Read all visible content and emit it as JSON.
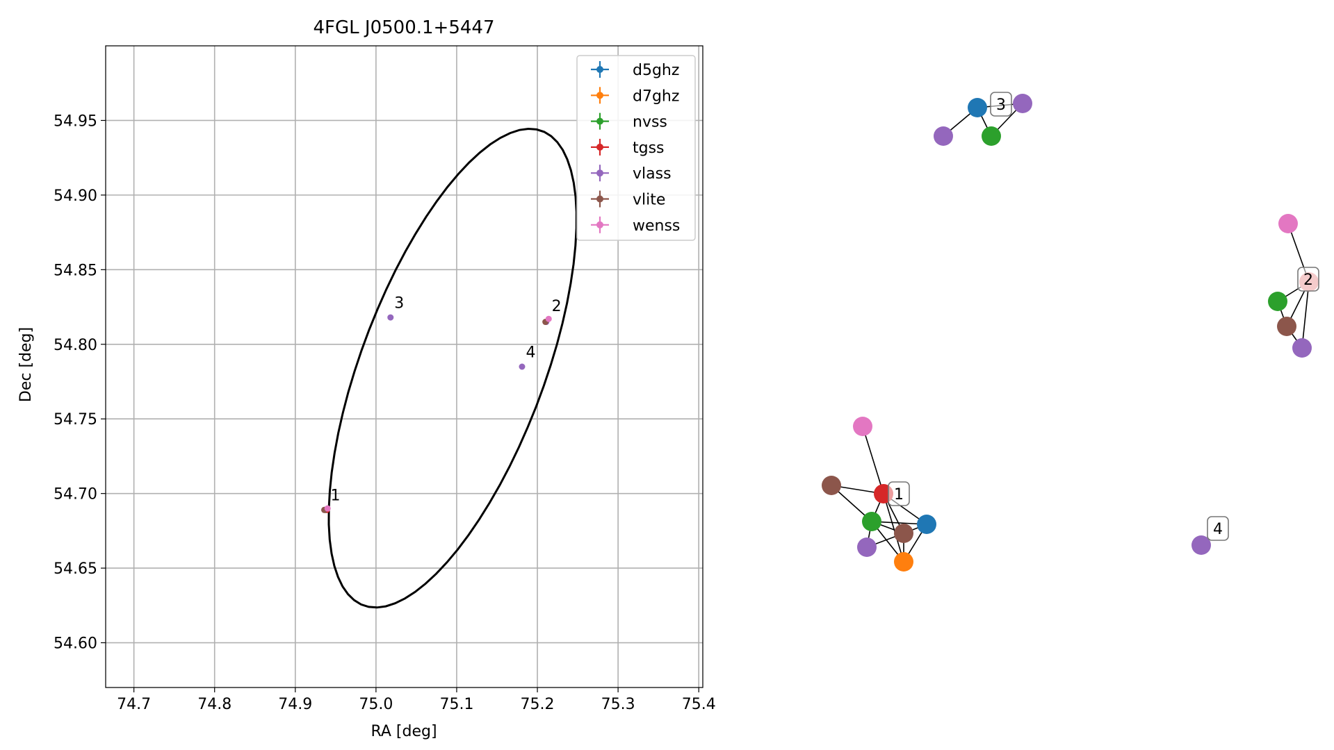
{
  "chart_data": [
    {
      "type": "scatter",
      "title": "4FGL J0500.1+5447",
      "xlabel": "RA [deg]",
      "ylabel": "Dec [deg]",
      "xlim": [
        74.665,
        75.405
      ],
      "ylim": [
        54.57,
        55.0
      ],
      "xticks": [
        74.7,
        74.8,
        74.9,
        75.0,
        75.1,
        75.2,
        75.3,
        75.4
      ],
      "xtick_labels": [
        "74.7",
        "74.8",
        "74.9",
        "75.0",
        "75.1",
        "75.2",
        "75.3",
        "75.4"
      ],
      "yticks": [
        54.6,
        54.65,
        54.7,
        54.75,
        54.8,
        54.85,
        54.9,
        54.95
      ],
      "ytick_labels": [
        "54.60",
        "54.65",
        "54.70",
        "54.75",
        "54.80",
        "54.85",
        "54.90",
        "54.95"
      ],
      "grid": true,
      "legend_position": "top-right",
      "series": [
        {
          "name": "d5ghz",
          "color": "#1f77b4",
          "points": [
            {
              "x": 74.938,
              "y": 54.689
            }
          ]
        },
        {
          "name": "d7ghz",
          "color": "#ff7f0e",
          "points": [
            {
              "x": 74.937,
              "y": 54.689
            }
          ]
        },
        {
          "name": "nvss",
          "color": "#2ca02c",
          "points": [
            {
              "x": 74.938,
              "y": 54.689
            }
          ]
        },
        {
          "name": "tgss",
          "color": "#d62728",
          "points": [
            {
              "x": 74.939,
              "y": 54.689
            }
          ]
        },
        {
          "name": "vlass",
          "color": "#9467bd",
          "points": [
            {
              "x": 74.936,
              "y": 54.689
            },
            {
              "x": 75.018,
              "y": 54.818
            },
            {
              "x": 75.181,
              "y": 54.785
            },
            {
              "x": 75.211,
              "y": 54.815
            }
          ]
        },
        {
          "name": "vlite",
          "color": "#8c564b",
          "points": [
            {
              "x": 74.936,
              "y": 54.689
            },
            {
              "x": 75.21,
              "y": 54.815
            }
          ]
        },
        {
          "name": "wenss",
          "color": "#e377c2",
          "points": [
            {
              "x": 74.94,
              "y": 54.69
            },
            {
              "x": 75.214,
              "y": 54.817
            }
          ]
        }
      ],
      "annotations": [
        {
          "text": "1",
          "x": 74.942,
          "y": 54.693
        },
        {
          "text": "2",
          "x": 75.216,
          "y": 54.82
        },
        {
          "text": "3",
          "x": 75.021,
          "y": 54.822
        },
        {
          "text": "4",
          "x": 75.184,
          "y": 54.789
        }
      ],
      "ellipse": {
        "center": [
          75.095,
          54.784
        ],
        "width_ra": 0.4,
        "height_dec": 0.193,
        "angle_deg": 47,
        "color": "#000000"
      }
    },
    {
      "type": "network",
      "clusters": [
        {
          "label": "1",
          "nodes": [
            {
              "id": "tgss",
              "color": "#d62728"
            },
            {
              "id": "vlite",
              "color": "#8c564b"
            },
            {
              "id": "wenss",
              "color": "#e377c2"
            },
            {
              "id": "nvss",
              "color": "#2ca02c"
            },
            {
              "id": "d5ghz",
              "color": "#1f77b4"
            },
            {
              "id": "vlite_b",
              "color": "#8c564b"
            },
            {
              "id": "vlass",
              "color": "#9467bd"
            },
            {
              "id": "d7ghz",
              "color": "#ff7f0e"
            }
          ]
        },
        {
          "label": "2",
          "nodes": [
            {
              "id": "wenss",
              "color": "#e377c2"
            },
            {
              "id": "tgss",
              "color": "#e78c8c"
            },
            {
              "id": "nvss",
              "color": "#2ca02c"
            },
            {
              "id": "vlite",
              "color": "#8c564b"
            },
            {
              "id": "vlass",
              "color": "#9467bd"
            }
          ]
        },
        {
          "label": "3",
          "nodes": [
            {
              "id": "d5ghz",
              "color": "#1f77b4"
            },
            {
              "id": "vlass_a",
              "color": "#9467bd"
            },
            {
              "id": "vlass_b",
              "color": "#9467bd"
            },
            {
              "id": "nvss",
              "color": "#2ca02c"
            }
          ]
        },
        {
          "label": "4",
          "nodes": [
            {
              "id": "vlass",
              "color": "#9467bd"
            }
          ]
        }
      ]
    }
  ]
}
